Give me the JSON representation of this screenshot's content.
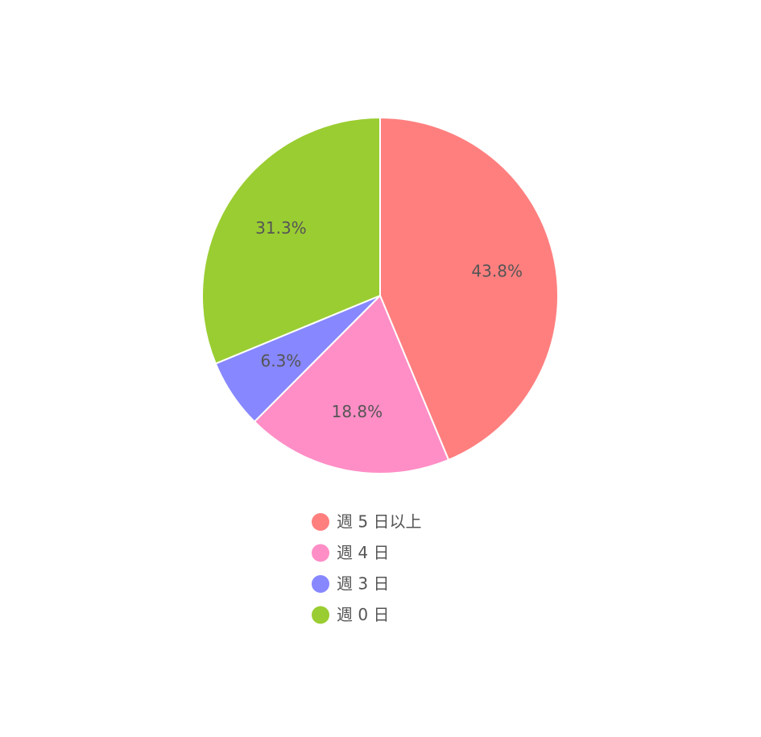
{
  "chart_data": {
    "type": "pie",
    "categories": [
      "週 5 日以上",
      "週 4 日",
      "週 3 日",
      "週 0 日"
    ],
    "values": [
      43.8,
      18.8,
      6.3,
      31.3
    ],
    "value_labels": [
      "43.8%",
      "18.8%",
      "6.3%",
      "31.3%"
    ],
    "colors": [
      "#ff7f7f",
      "#ff8ec6",
      "#8787ff",
      "#9acd32"
    ]
  }
}
